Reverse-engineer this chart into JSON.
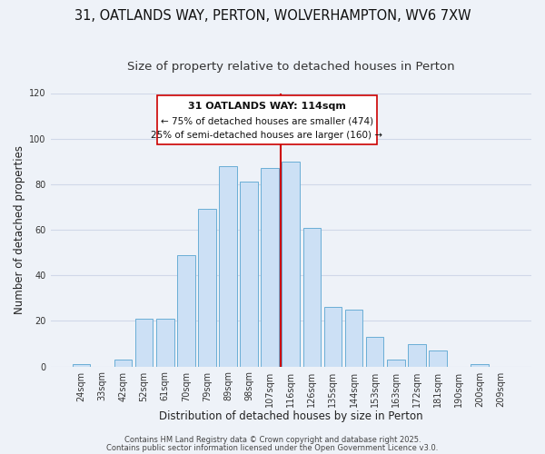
{
  "title": "31, OATLANDS WAY, PERTON, WOLVERHAMPTON, WV6 7XW",
  "subtitle": "Size of property relative to detached houses in Perton",
  "xlabel": "Distribution of detached houses by size in Perton",
  "ylabel": "Number of detached properties",
  "bar_labels": [
    "24sqm",
    "33sqm",
    "42sqm",
    "52sqm",
    "61sqm",
    "70sqm",
    "79sqm",
    "89sqm",
    "98sqm",
    "107sqm",
    "116sqm",
    "126sqm",
    "135sqm",
    "144sqm",
    "153sqm",
    "163sqm",
    "172sqm",
    "181sqm",
    "190sqm",
    "200sqm",
    "209sqm"
  ],
  "bar_values": [
    1,
    0,
    3,
    21,
    21,
    49,
    69,
    88,
    81,
    87,
    90,
    61,
    26,
    25,
    13,
    3,
    10,
    7,
    0,
    1,
    0
  ],
  "bar_color": "#cce0f5",
  "bar_edge_color": "#6aaed6",
  "vline_x_data": 9.5,
  "vline_color": "#cc0000",
  "ylim": [
    0,
    120
  ],
  "yticks": [
    0,
    20,
    40,
    60,
    80,
    100,
    120
  ],
  "annotation_title": "31 OATLANDS WAY: 114sqm",
  "annotation_line1": "← 75% of detached houses are smaller (474)",
  "annotation_line2": "25% of semi-detached houses are larger (160) →",
  "footer1": "Contains HM Land Registry data © Crown copyright and database right 2025.",
  "footer2": "Contains public sector information licensed under the Open Government Licence v3.0.",
  "background_color": "#eef2f8",
  "plot_bg_color": "#eef2f8",
  "grid_color": "#d0d8e8",
  "title_fontsize": 10.5,
  "subtitle_fontsize": 9.5,
  "axis_label_fontsize": 8.5,
  "tick_fontsize": 7,
  "annotation_title_fontsize": 8,
  "annotation_line_fontsize": 7.5,
  "footer_fontsize": 6
}
